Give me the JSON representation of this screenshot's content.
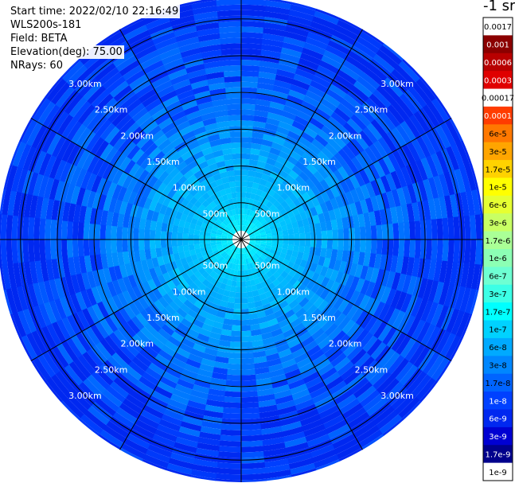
{
  "header": {
    "start_time": "Start time: 2022/02/10 22:16:49",
    "instrument": "WLS200s-181",
    "field": "Field: BETA",
    "elevation": "Elevation(deg): 75.00",
    "nrays": "NRays: 60"
  },
  "colorbar": {
    "title": "-1 sr",
    "entries": [
      {
        "label": "0.0017",
        "color": "#ffffff",
        "text": "#000000"
      },
      {
        "label": "0.001",
        "color": "#8b0000",
        "text": "#ffffff"
      },
      {
        "label": "0.0006",
        "color": "#b80000",
        "text": "#ffffff"
      },
      {
        "label": "0.0003",
        "color": "#e00000",
        "text": "#ffffff"
      },
      {
        "label": "0.00017",
        "color": "#ffffff",
        "text": "#000000"
      },
      {
        "label": "0.0001",
        "color": "#ff3c00",
        "text": "#ffffff"
      },
      {
        "label": "6e-5",
        "color": "#ff7800",
        "text": "#000000"
      },
      {
        "label": "3e-5",
        "color": "#ffa500",
        "text": "#000000"
      },
      {
        "label": "1.7e-5",
        "color": "#ffd200",
        "text": "#000000"
      },
      {
        "label": "1e-5",
        "color": "#ffff00",
        "text": "#000000"
      },
      {
        "label": "6e-6",
        "color": "#e6ff32",
        "text": "#000000"
      },
      {
        "label": "3e-6",
        "color": "#c8ff64",
        "text": "#000000"
      },
      {
        "label": "1.7e-6",
        "color": "#aaff96",
        "text": "#000000"
      },
      {
        "label": "1e-6",
        "color": "#8cffb4",
        "text": "#000000"
      },
      {
        "label": "6e-7",
        "color": "#6effd2",
        "text": "#000000"
      },
      {
        "label": "3e-7",
        "color": "#3cffe6",
        "text": "#000000"
      },
      {
        "label": "1.7e-7",
        "color": "#00ffff",
        "text": "#000000"
      },
      {
        "label": "1e-7",
        "color": "#00d2ff",
        "text": "#000000"
      },
      {
        "label": "6e-8",
        "color": "#00aaff",
        "text": "#000000"
      },
      {
        "label": "3e-8",
        "color": "#0087ff",
        "text": "#000000"
      },
      {
        "label": "1.7e-8",
        "color": "#0064ff",
        "text": "#000000"
      },
      {
        "label": "1e-8",
        "color": "#0041ff",
        "text": "#ffffff"
      },
      {
        "label": "6e-9",
        "color": "#0028f0",
        "text": "#ffffff"
      },
      {
        "label": "3e-9",
        "color": "#0000d2",
        "text": "#ffffff"
      },
      {
        "label": "1.7e-9",
        "color": "#00008c",
        "text": "#ffffff"
      },
      {
        "label": "1e-9",
        "color": "#ffffff",
        "text": "#000000"
      }
    ]
  },
  "chart_data": {
    "type": "heatmap",
    "projection": "polar (PPI)",
    "max_range_km": 3.3,
    "range_rings_km": [
      0.5,
      1.0,
      1.5,
      2.0,
      2.5,
      3.0
    ],
    "ring_labels": [
      "500m",
      "1.00km",
      "1.50km",
      "2.00km",
      "2.50km",
      "3.00km"
    ],
    "spoke_angles_deg": [
      0,
      30,
      60,
      90,
      120,
      150,
      180,
      210,
      240,
      270,
      300,
      330
    ],
    "nrays": 60,
    "range_gate_km": 0.075,
    "beta_profile": [
      {
        "range_km": 0.2,
        "beta": 1.7e-07
      },
      {
        "range_km": 0.5,
        "beta": 1e-07
      },
      {
        "range_km": 1.0,
        "beta": 6e-08
      },
      {
        "range_km": 1.5,
        "beta": 3e-08
      },
      {
        "range_km": 2.0,
        "beta": 1.7e-08
      },
      {
        "range_km": 2.5,
        "beta": 1.2e-08
      },
      {
        "range_km": 3.0,
        "beta": 9e-09
      },
      {
        "range_km": 3.3,
        "beta": 8e-09
      }
    ]
  }
}
